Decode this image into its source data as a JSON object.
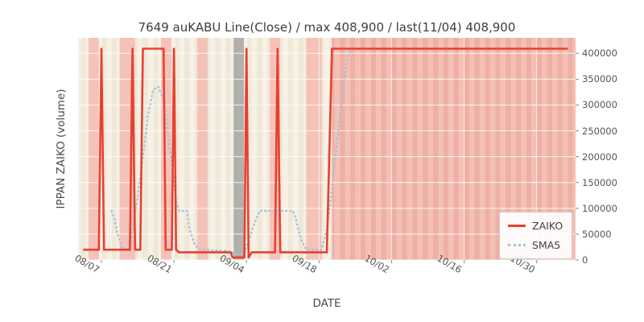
{
  "title": "7649 auKABU Line(Close) / max 408,900 / last(11/04) 408,900",
  "axes": {
    "x_label": "DATE",
    "y_label": "IPPAN ZAIKO (volume)"
  },
  "legend": [
    {
      "label": "ZAIKO",
      "style": "solid",
      "color": "#e8402f"
    },
    {
      "label": "SMA5",
      "style": "dotted",
      "color": "#9fc3da"
    }
  ],
  "chart_data": {
    "type": "line",
    "title": "7649 auKABU Line(Close) / max 408,900 / last(11/04) 408,900",
    "xlabel": "DATE",
    "ylabel": "IPPAN ZAIKO (volume)",
    "max": 408900,
    "last": {
      "date": "11/04",
      "value": 408900
    },
    "x_day0": "08/04",
    "x_domain": [
      -1.5,
      94.5
    ],
    "y_domain": [
      0,
      430000
    ],
    "x_ticks": [
      {
        "day": 3,
        "label": "08/07"
      },
      {
        "day": 17,
        "label": "08/21"
      },
      {
        "day": 31,
        "label": "09/04"
      },
      {
        "day": 45,
        "label": "09/18"
      },
      {
        "day": 59,
        "label": "10/02"
      },
      {
        "day": 73,
        "label": "10/16"
      },
      {
        "day": 87,
        "label": "10/30"
      }
    ],
    "y_ticks": [
      {
        "value": 0,
        "label": "0"
      },
      {
        "value": 50000,
        "label": "50000"
      },
      {
        "value": 100000,
        "label": "100000"
      },
      {
        "value": 150000,
        "label": "150000"
      },
      {
        "value": 200000,
        "label": "200000"
      },
      {
        "value": 250000,
        "label": "250000"
      },
      {
        "value": 300000,
        "label": "300000"
      },
      {
        "value": 350000,
        "label": "350000"
      },
      {
        "value": 400000,
        "label": "400000"
      }
    ],
    "colors": {
      "base_a": "#f6f0e6",
      "base_b": "#efe8d7",
      "weekend": "#f5c2b8",
      "gray": "#a6a6a6",
      "overlay_a": "#f4c0b6",
      "overlay_b": "#eeafa4",
      "grid": "#ffffff",
      "tick": "#888888",
      "zaiko": "#e8402f",
      "sma5": "#9fc3da"
    },
    "spans": [
      {
        "x0": 0.5,
        "x1": 2.5,
        "color": "weekend"
      },
      {
        "x0": 6.5,
        "x1": 9.5,
        "color": "weekend"
      },
      {
        "x0": 14.5,
        "x1": 16.5,
        "color": "weekend"
      },
      {
        "x0": 21.5,
        "x1": 23.5,
        "color": "weekend"
      },
      {
        "x0": 28.5,
        "x1": 30.5,
        "color": "gray"
      },
      {
        "x0": 35.5,
        "x1": 37.5,
        "color": "weekend"
      },
      {
        "x0": 42.5,
        "x1": 45.5,
        "color": "weekend"
      }
    ],
    "overlay": {
      "x0": 47.5,
      "x1": 94.5
    },
    "series": [
      {
        "name": "SMA5",
        "style": "dotted",
        "width": 2.4,
        "color": "#9fc3da",
        "points": [
          [
            5,
            95000
          ],
          [
            5.5,
            80000
          ],
          [
            6,
            55000
          ],
          [
            7,
            22000
          ],
          [
            8.5,
            22000
          ],
          [
            9,
            60000
          ],
          [
            10,
            120000
          ],
          [
            11,
            200000
          ],
          [
            12,
            280000
          ],
          [
            13,
            330000
          ],
          [
            14,
            335000
          ],
          [
            15,
            310000
          ],
          [
            16,
            230000
          ],
          [
            17,
            150000
          ],
          [
            17.5,
            110000
          ],
          [
            18,
            95000
          ],
          [
            19.5,
            95000
          ],
          [
            20,
            60000
          ],
          [
            21,
            30000
          ],
          [
            22,
            20000
          ],
          [
            27,
            18000
          ],
          [
            29,
            12000
          ],
          [
            30.5,
            12000
          ],
          [
            31.5,
            40000
          ],
          [
            32.5,
            70000
          ],
          [
            33.5,
            95000
          ],
          [
            40,
            95000
          ],
          [
            40.5,
            80000
          ],
          [
            41.5,
            40000
          ],
          [
            42.5,
            20000
          ],
          [
            45.5,
            20000
          ],
          [
            46.5,
            60000
          ],
          [
            47.5,
            140000
          ],
          [
            48.5,
            230000
          ],
          [
            49.5,
            320000
          ],
          [
            50.5,
            390000
          ],
          [
            51,
            408900
          ],
          [
            52,
            408900
          ]
        ]
      },
      {
        "name": "ZAIKO",
        "style": "solid",
        "width": 2.6,
        "color": "#e8402f",
        "points": [
          [
            -0.5,
            20000
          ],
          [
            2.5,
            20000
          ],
          [
            3,
            408900
          ],
          [
            3.5,
            20000
          ],
          [
            8.5,
            20000
          ],
          [
            9,
            408900
          ],
          [
            9.5,
            20000
          ],
          [
            10.5,
            20000
          ],
          [
            11,
            408900
          ],
          [
            15,
            408900
          ],
          [
            15.4,
            20000
          ],
          [
            16.6,
            20000
          ],
          [
            17,
            408900
          ],
          [
            17.4,
            20000
          ],
          [
            18,
            15000
          ],
          [
            28,
            15000
          ],
          [
            28.3,
            5000
          ],
          [
            30.6,
            5000
          ],
          [
            31,
            408900
          ],
          [
            31.4,
            5000
          ],
          [
            32,
            15000
          ],
          [
            36.5,
            15000
          ],
          [
            37,
            408900
          ],
          [
            37.5,
            15000
          ],
          [
            46.5,
            15000
          ],
          [
            47.5,
            408900
          ],
          [
            93,
            408900
          ]
        ]
      }
    ]
  }
}
